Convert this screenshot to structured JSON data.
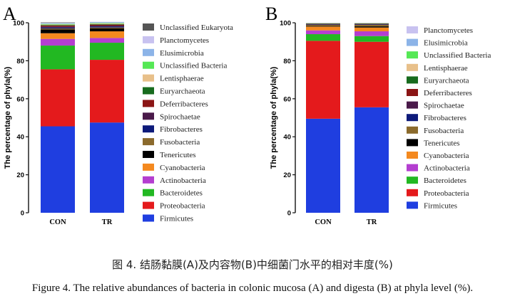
{
  "figure": {
    "caption_cn": "图 4. 结肠黏膜(A)及内容物(B)中细菌门水平的相对丰度(%)",
    "caption_en": "Figure 4. The relative abundances of bacteria in colonic mucosa (A) and digesta (B) at phyla level (%)."
  },
  "chart_data": [
    {
      "panel_label": "A",
      "type": "bar",
      "stacked": true,
      "title": "",
      "xlabel": "",
      "ylabel": "The percentage of phyla(%)",
      "ylim": [
        0,
        100
      ],
      "yticks": [
        "0",
        "20",
        "40",
        "60",
        "80",
        "100"
      ],
      "categories": [
        "CON",
        "TR"
      ],
      "series": [
        {
          "name": "Firmicutes",
          "color": "#1f3ee0",
          "values": [
            45.5,
            47.5
          ]
        },
        {
          "name": "Proteobacteria",
          "color": "#e41a1c",
          "values": [
            30.0,
            33.0
          ]
        },
        {
          "name": "Bacteroidetes",
          "color": "#22b822",
          "values": [
            12.5,
            9.0
          ]
        },
        {
          "name": "Actinobacteria",
          "color": "#b43ed0",
          "values": [
            3.5,
            2.5
          ]
        },
        {
          "name": "Cyanobacteria",
          "color": "#f4891f",
          "values": [
            3.0,
            3.5
          ]
        },
        {
          "name": "Tenericutes",
          "color": "#000000",
          "values": [
            2.0,
            1.5
          ]
        },
        {
          "name": "Fusobacteria",
          "color": "#8b6a2c",
          "values": [
            0.5,
            0.5
          ]
        },
        {
          "name": "Fibrobacteres",
          "color": "#0d1a7a",
          "values": [
            0.5,
            0.5
          ]
        },
        {
          "name": "Spirochaetae",
          "color": "#4a1a4a",
          "values": [
            0.5,
            0.5
          ]
        },
        {
          "name": "Deferribacteres",
          "color": "#8b1515",
          "values": [
            0.5,
            0.5
          ]
        },
        {
          "name": "Euryarchaeota",
          "color": "#176b1e",
          "values": [
            0.3,
            0.3
          ]
        },
        {
          "name": "Lentisphaerae",
          "color": "#e8c08a",
          "values": [
            0.3,
            0.3
          ]
        },
        {
          "name": "Unclassified Bacteria",
          "color": "#55e855",
          "values": [
            0.3,
            0.3
          ]
        },
        {
          "name": "Elusimicrobia",
          "color": "#8cb4e8",
          "values": [
            0.3,
            0.3
          ]
        },
        {
          "name": "Planctomycetes",
          "color": "#c8c2f0",
          "values": [
            0.3,
            0.3
          ]
        },
        {
          "name": "Unclassified Eukaryota",
          "color": "#555555",
          "values": [
            0.2,
            0.0
          ]
        }
      ],
      "legend_order": [
        "Unclassified Eukaryota",
        "Planctomycetes",
        "Elusimicrobia",
        "Unclassified Bacteria",
        "Lentisphaerae",
        "Euryarchaeota",
        "Deferribacteres",
        "Spirochaetae",
        "Fibrobacteres",
        "Fusobacteria",
        "Tenericutes",
        "Cyanobacteria",
        "Actinobacteria",
        "Bacteroidetes",
        "Proteobacteria",
        "Firmicutes"
      ],
      "legend_position": "right"
    },
    {
      "panel_label": "B",
      "type": "bar",
      "stacked": true,
      "title": "",
      "xlabel": "",
      "ylabel": "The percentage of phyla(%)",
      "ylim": [
        0,
        100
      ],
      "yticks": [
        "0",
        "20",
        "40",
        "60",
        "80",
        "100"
      ],
      "categories": [
        "CON",
        "TR"
      ],
      "series": [
        {
          "name": "Firmicutes",
          "color": "#1f3ee0",
          "values": [
            49.5,
            55.5
          ]
        },
        {
          "name": "Proteobacteria",
          "color": "#e41a1c",
          "values": [
            41.0,
            34.5
          ]
        },
        {
          "name": "Bacteroidetes",
          "color": "#22b822",
          "values": [
            3.5,
            3.0
          ]
        },
        {
          "name": "Actinobacteria",
          "color": "#b43ed0",
          "values": [
            2.0,
            2.5
          ]
        },
        {
          "name": "Cyanobacteria",
          "color": "#f4891f",
          "values": [
            2.0,
            2.0
          ]
        },
        {
          "name": "Tenericutes",
          "color": "#000000",
          "values": [
            0.3,
            0.6
          ]
        },
        {
          "name": "Fusobacteria",
          "color": "#8b6a2c",
          "values": [
            0.6,
            0.8
          ]
        },
        {
          "name": "Fibrobacteres",
          "color": "#0d1a7a",
          "values": [
            0.2,
            0.2
          ]
        },
        {
          "name": "Spirochaetae",
          "color": "#4a1a4a",
          "values": [
            0.2,
            0.2
          ]
        },
        {
          "name": "Deferribacteres",
          "color": "#8b1515",
          "values": [
            0.2,
            0.2
          ]
        },
        {
          "name": "Euryarchaeota",
          "color": "#176b1e",
          "values": [
            0.1,
            0.1
          ]
        },
        {
          "name": "Lentisphaerae",
          "color": "#e8c08a",
          "values": [
            0.2,
            0.2
          ]
        },
        {
          "name": "Unclassified Bacteria",
          "color": "#55e855",
          "values": [
            0.1,
            0.1
          ]
        },
        {
          "name": "Elusimicrobia",
          "color": "#8cb4e8",
          "values": [
            0.05,
            0.05
          ]
        },
        {
          "name": "Planctomycetes",
          "color": "#c8c2f0",
          "values": [
            0.05,
            0.05
          ]
        }
      ],
      "legend_order": [
        "Planctomycetes",
        "Elusimicrobia",
        "Unclassified Bacteria",
        "Lentisphaerae",
        "Euryarchaeota",
        "Deferribacteres",
        "Spirochaetae",
        "Fibrobacteres",
        "Fusobacteria",
        "Tenericutes",
        "Cyanobacteria",
        "Actinobacteria",
        "Bacteroidetes",
        "Proteobacteria",
        "Firmicutes"
      ],
      "legend_position": "right"
    }
  ]
}
